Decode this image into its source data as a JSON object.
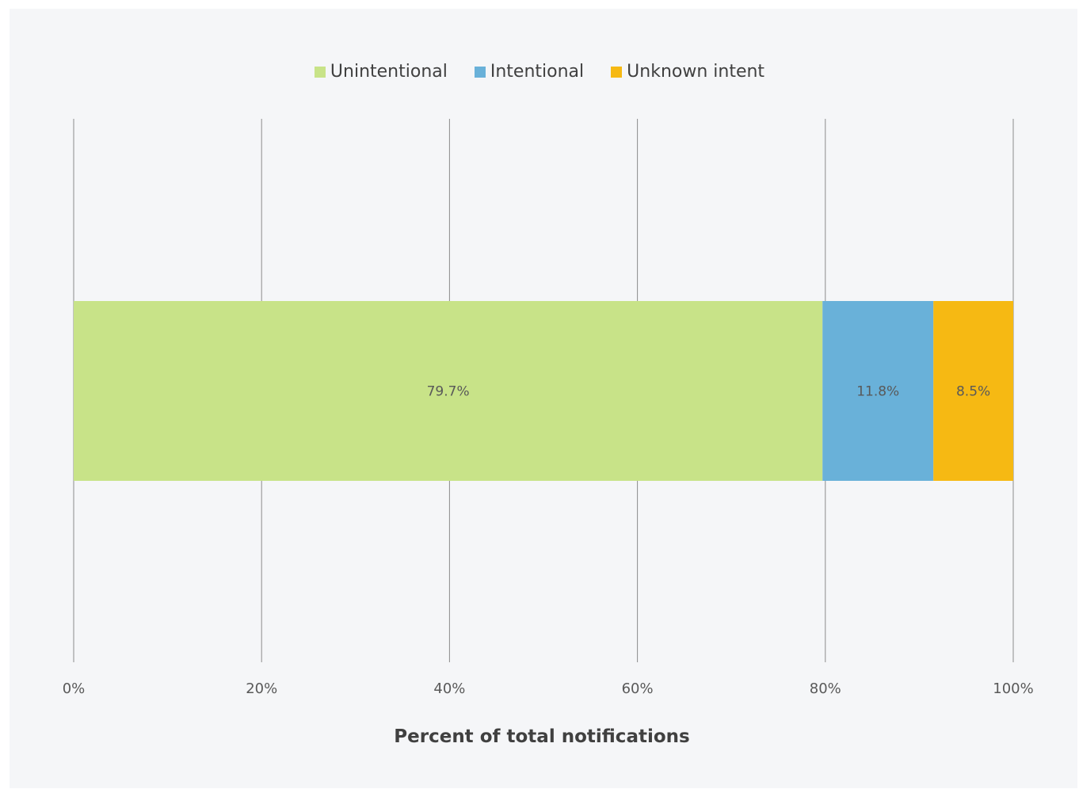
{
  "chart_data": {
    "type": "bar",
    "orientation": "horizontal",
    "stacked": true,
    "title": "",
    "xlabel": "Percent of total notifications",
    "ylabel": "",
    "xlim": [
      0,
      100
    ],
    "x_ticks": [
      "0%",
      "20%",
      "40%",
      "60%",
      "80%",
      "100%"
    ],
    "grid": "vertical",
    "legend_position": "top",
    "categories": [
      ""
    ],
    "series": [
      {
        "name": "Unintentional",
        "values": [
          79.7
        ],
        "label": "79.7%",
        "color": "#c8e388"
      },
      {
        "name": "Intentional",
        "values": [
          11.8
        ],
        "label": "11.8%",
        "color": "#69b1d9"
      },
      {
        "name": "Unknown intent",
        "values": [
          8.5
        ],
        "label": "8.5%",
        "color": "#f6b913"
      }
    ]
  }
}
